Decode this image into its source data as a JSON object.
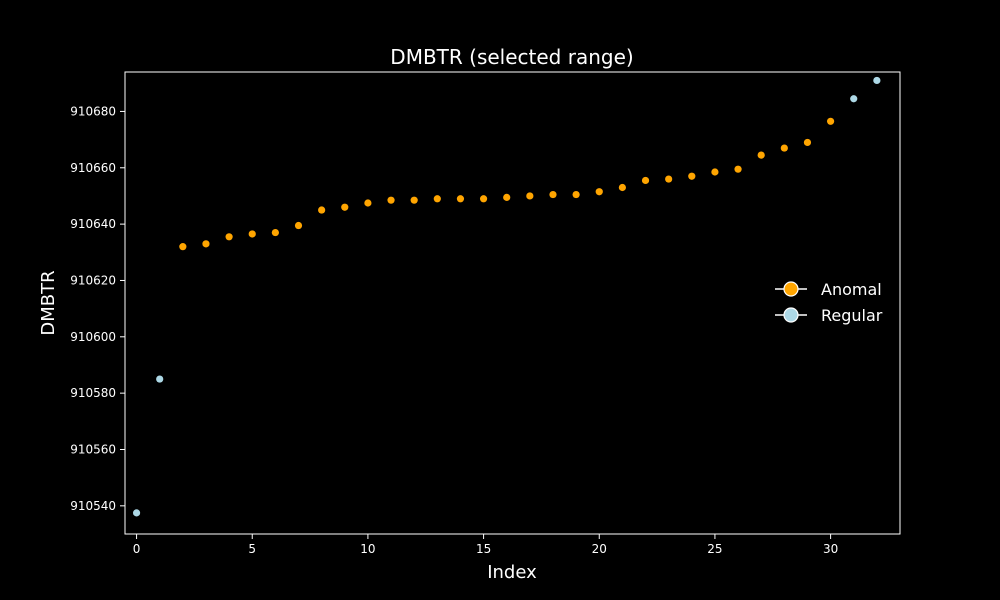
{
  "chart_data": {
    "type": "scatter",
    "title": "DMBTR (selected range)",
    "xlabel": "Index",
    "ylabel": "DMBTR",
    "xlim": [
      -0.5,
      33.0
    ],
    "ylim": [
      910530,
      910694
    ],
    "xticks": [
      "0",
      "5",
      "10",
      "15",
      "20",
      "25",
      "30"
    ],
    "yticks": [
      "910540",
      "910560",
      "910580",
      "910600",
      "910620",
      "910640",
      "910660",
      "910680"
    ],
    "legend_position": "center-right",
    "grid": false,
    "series": [
      {
        "name": "Anomal",
        "color": "#FFA500",
        "x": [
          2,
          3,
          4,
          5,
          6,
          7,
          8,
          9,
          10,
          11,
          12,
          13,
          14,
          15,
          16,
          17,
          18,
          19,
          20,
          21,
          22,
          23,
          24,
          25,
          26,
          27,
          28,
          29,
          30
        ],
        "y": [
          910632,
          910633,
          910635.5,
          910636.5,
          910637,
          910639.5,
          910645,
          910646,
          910647.5,
          910648.5,
          910648.5,
          910649,
          910649,
          910649,
          910649.5,
          910650,
          910650.5,
          910650.5,
          910651.5,
          910653,
          910655.5,
          910656,
          910657,
          910658.5,
          910659.5,
          910664.5,
          910667,
          910669,
          910676.5
        ]
      },
      {
        "name": "Regular",
        "color": "#ADD8E6",
        "x": [
          0,
          1,
          31,
          32
        ],
        "y": [
          910537.5,
          910585,
          910684.5,
          910691
        ]
      }
    ]
  }
}
